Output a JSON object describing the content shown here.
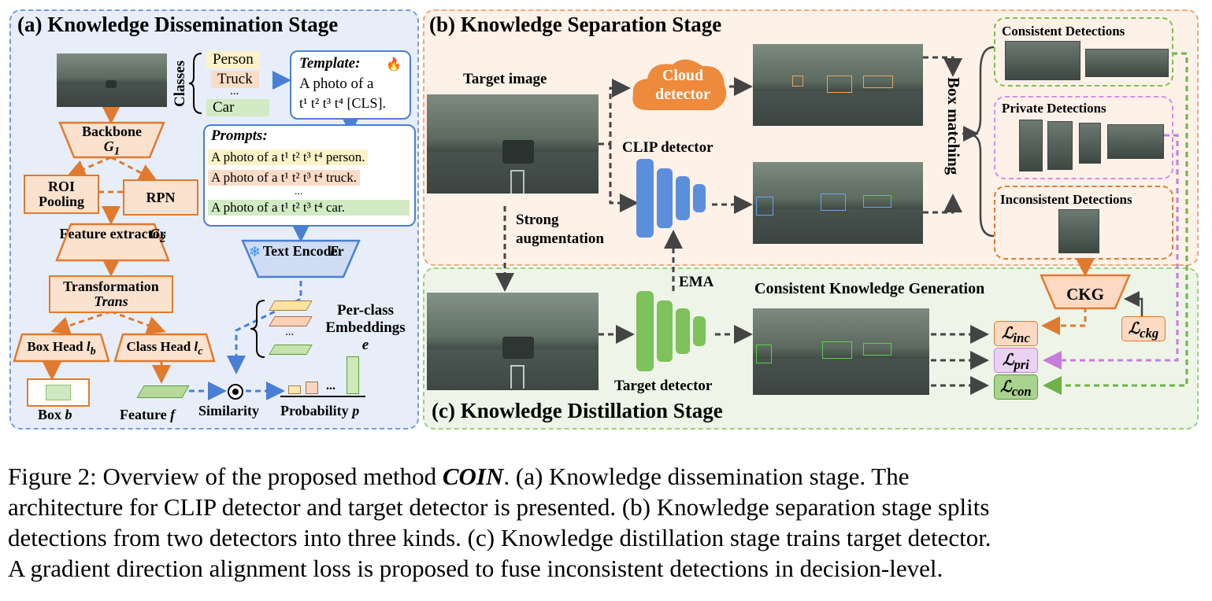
{
  "panels": {
    "a_title": "(a) Knowledge Dissemination Stage",
    "b_title": "(b) Knowledge Separation Stage",
    "c_title": "(c) Knowledge Distillation Stage"
  },
  "stage_a": {
    "backbone": "Backbone",
    "backbone_sym": "G",
    "backbone_sub": "1",
    "roi": "ROI Pooling",
    "rpn": "RPN",
    "feature_extractor": "Feature extractor",
    "feature_extractor_sym": "G",
    "feature_extractor_sub": "2",
    "transformation": "Transformation",
    "trans_sym": "Trans",
    "boxhead": "Box Head",
    "boxhead_sym": "l",
    "boxhead_sub": "b",
    "classhead": "Class Head",
    "classhead_sym": "l",
    "classhead_sub": "c",
    "box_label": "Box",
    "box_sym": "b",
    "feature_label": "Feature",
    "feature_sym": "f",
    "similarity": "Similarity",
    "probability": "Probability",
    "probability_sym": "p",
    "classes_label": "Classes",
    "classes": [
      "Person",
      "Truck",
      "...",
      "Car"
    ],
    "template_title": "Template:",
    "template_line1": "A photo of a",
    "template_line2": "t¹ t² t³ t⁴ [CLS].",
    "prompts_title": "Prompts:",
    "prompts": [
      "A photo of a t¹ t² t³ t⁴ person.",
      "A photo of a t¹ t² t³ t⁴ truck.",
      "...",
      "A photo of a t¹ t² t³ t⁴ car."
    ],
    "text_encoder": "Text Encoder",
    "text_encoder_sym": "E",
    "per_class": "Per-class Embeddings",
    "per_class_sym": "e",
    "ellipsis": "...",
    "snowflake": "❄",
    "flame": "🔥"
  },
  "stage_b": {
    "target_image": "Target image",
    "cloud_detector": "Cloud detector",
    "clip_detector": "CLIP detector",
    "box_matching": "Box matching",
    "strong_aug": "Strong augmentation",
    "consistent": "Consistent Detections",
    "private": "Private Detections",
    "inconsistent": "Inconsistent Detections"
  },
  "stage_c": {
    "ema": "EMA",
    "ckg_title": "Consistent Knowledge Generation",
    "ckg": "CKG",
    "target_detector": "Target detector",
    "losses": [
      {
        "name": "L_inc",
        "main": "ℒ",
        "sub": "inc",
        "color": "#fbd9c2"
      },
      {
        "name": "L_pri",
        "main": "ℒ",
        "sub": "pri",
        "color": "#ead3f2"
      },
      {
        "name": "L_con",
        "main": "ℒ",
        "sub": "con",
        "color": "#a9d38e"
      }
    ],
    "l_ckg_main": "ℒ",
    "l_ckg_sub": "ckg"
  },
  "caption": {
    "line1_a": "Figure 2:  Overview of the proposed method ",
    "line1_em": "COIN",
    "line1_b": ". (a) Knowledge dissemination stage.  The",
    "line2": "architecture for CLIP detector and target detector is presented. (b) Knowledge separation stage splits",
    "line3": "detections from two detectors into three kinds. (c) Knowledge distillation stage trains target detector.",
    "line4": "A gradient direction alignment loss is proposed to fuse inconsistent detections in decision-level."
  },
  "colors": {
    "orange": "#e07a2e",
    "blue": "#4a7fd4",
    "green": "#6fb24a",
    "purple": "#c77ddc",
    "panel_a_bg": "#e8eef9",
    "panel_b_bg": "#fdf1e8",
    "panel_c_bg": "#eef5e8"
  }
}
